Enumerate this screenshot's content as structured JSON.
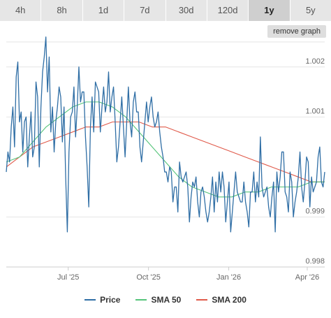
{
  "tabs": [
    {
      "label": "4h",
      "active": false
    },
    {
      "label": "8h",
      "active": false
    },
    {
      "label": "1d",
      "active": false
    },
    {
      "label": "7d",
      "active": false
    },
    {
      "label": "30d",
      "active": false
    },
    {
      "label": "120d",
      "active": false
    },
    {
      "label": "1y",
      "active": true
    },
    {
      "label": "5y",
      "active": false
    }
  ],
  "remove_graph_label": "remove graph",
  "legend": [
    {
      "label": "Price",
      "color": "#2f6ea5"
    },
    {
      "label": "SMA 50",
      "color": "#55c47a"
    },
    {
      "label": "SMA 200",
      "color": "#e05a4a"
    }
  ],
  "chart_data": {
    "type": "line",
    "ylim": [
      0.998,
      1.0025
    ],
    "yticks": [
      0.998,
      0.999,
      1.001,
      1.002
    ],
    "ytick_labels": [
      "0.998",
      "0.999",
      "1.001",
      "1.002"
    ],
    "xticks": [
      "2025-07-01",
      "2025-10-01",
      "2026-01-01",
      "2026-04-01"
    ],
    "xtick_labels": [
      "Jul '25",
      "Oct '25",
      "Jan '26",
      "Apr '26"
    ],
    "x_start": "2025-04-21",
    "x_end": "2026-04-21",
    "grid": true,
    "legend_position": "bottom",
    "series": [
      {
        "name": "Price",
        "color": "#2f6ea5",
        "values": [
          0.9999,
          1.0003,
          1.0001,
          1.0008,
          1.0012,
          1.0004,
          1.0018,
          1.0021,
          1.0009,
          1.0011,
          1.0003,
          1.0009,
          1.001,
          1.0,
          1.0006,
          1.0011,
          1.0002,
          1.0004,
          1.0017,
          1.0014,
          1.0,
          1.0012,
          1.0019,
          1.0022,
          1.0026,
          1.0015,
          1.0022,
          1.0007,
          1.0012,
          1.0003,
          1.0009,
          1.0012,
          1.0016,
          1.0014,
          1.0005,
          1.0012,
          0.9998,
          0.9987,
          1.0003,
          1.001,
          1.0011,
          1.0016,
          1.0006,
          1.0012,
          1.002,
          1.0013,
          1.0015,
          1.0015,
          1.0006,
          1.0,
          0.9992,
          1.0008,
          1.0014,
          1.0007,
          1.0017,
          1.0016,
          1.0015,
          1.0007,
          1.0012,
          1.0016,
          1.0011,
          1.0013,
          1.0019,
          1.0011,
          1.0014,
          1.0016,
          1.0009,
          1.0001,
          1.0004,
          1.0009,
          1.0014,
          1.0008,
          1.0002,
          1.0009,
          1.0016,
          1.0009,
          1.0006,
          1.0013,
          1.0015,
          1.0011,
          1.0011,
          1.0004,
          1.0001,
          1.0005,
          1.0009,
          1.0013,
          1.0009,
          1.0012,
          1.0014,
          1.001,
          1.0008,
          1.0009,
          1.0011,
          1.0007,
          1.0004,
          1.0002,
          0.9999,
          0.9999,
          0.9997,
          1.0,
          0.9999,
          0.9993,
          0.9996,
          0.9996,
          0.9991,
          1.0001,
          0.9998,
          0.9997,
          0.9998,
          0.9999,
          0.9996,
          0.9989,
          0.9994,
          0.9997,
          0.9996,
          0.9998,
          0.9993,
          0.999,
          0.9995,
          0.9996,
          0.9994,
          0.9991,
          0.9989,
          0.9991,
          0.9994,
          0.9998,
          0.9991,
          0.9997,
          0.9993,
          0.9999,
          0.9995,
          0.9999,
          0.9996,
          0.9989,
          0.9993,
          0.9997,
          0.9987,
          0.9991,
          0.9995,
          0.9999,
          0.9995,
          0.9994,
          0.9993,
          0.9993,
          0.9997,
          0.9993,
          0.9991,
          0.9988,
          0.9995,
          0.9995,
          0.9999,
          0.9993,
          0.9997,
          0.9994,
          1.0006,
          0.9996,
          0.9994,
          0.9995,
          0.9996,
          0.9992,
          0.999,
          0.9994,
          0.9997,
          0.9987,
          0.9999,
          0.9995,
          0.9998,
          1.0003,
          1.0003,
          0.9995,
          0.9994,
          0.9991,
          0.9999,
          0.9997,
          0.999,
          0.9993,
          0.9995,
          0.9998,
          1.0003,
          0.9996,
          0.9993,
          0.9997,
          1.0002,
          1.0001,
          0.9992,
          0.9998,
          0.9995,
          0.9996,
          0.9997,
          1.0002,
          1.0004,
          0.9997,
          0.9996,
          0.9999
        ],
        "note_x": "evenly spaced daily observations between x_start and x_end"
      },
      {
        "name": "SMA 50",
        "color": "#55c47a",
        "values": [
          1.0001,
          1.0002,
          1.0005,
          1.0008,
          1.001,
          1.0012,
          1.0013,
          1.0013,
          1.0012,
          1.001,
          1.0007,
          1.0004,
          1.0001,
          0.9998,
          0.9996,
          0.9995,
          0.9994,
          0.9994,
          0.9995,
          0.9995,
          0.9996,
          0.9996,
          0.9996,
          0.9997,
          0.9997
        ]
      },
      {
        "name": "SMA 200",
        "color": "#e05a4a",
        "values": [
          1.0,
          1.0002,
          1.0004,
          1.0005,
          1.0006,
          1.0007,
          1.0008,
          1.0008,
          1.0009,
          1.0009,
          1.0009,
          1.0008,
          1.0008,
          1.0007,
          1.0006,
          1.0005,
          1.0004,
          1.0003,
          1.0002,
          1.0001,
          1.0,
          0.9999,
          0.9998,
          0.9997,
          0.9997
        ]
      }
    ]
  }
}
